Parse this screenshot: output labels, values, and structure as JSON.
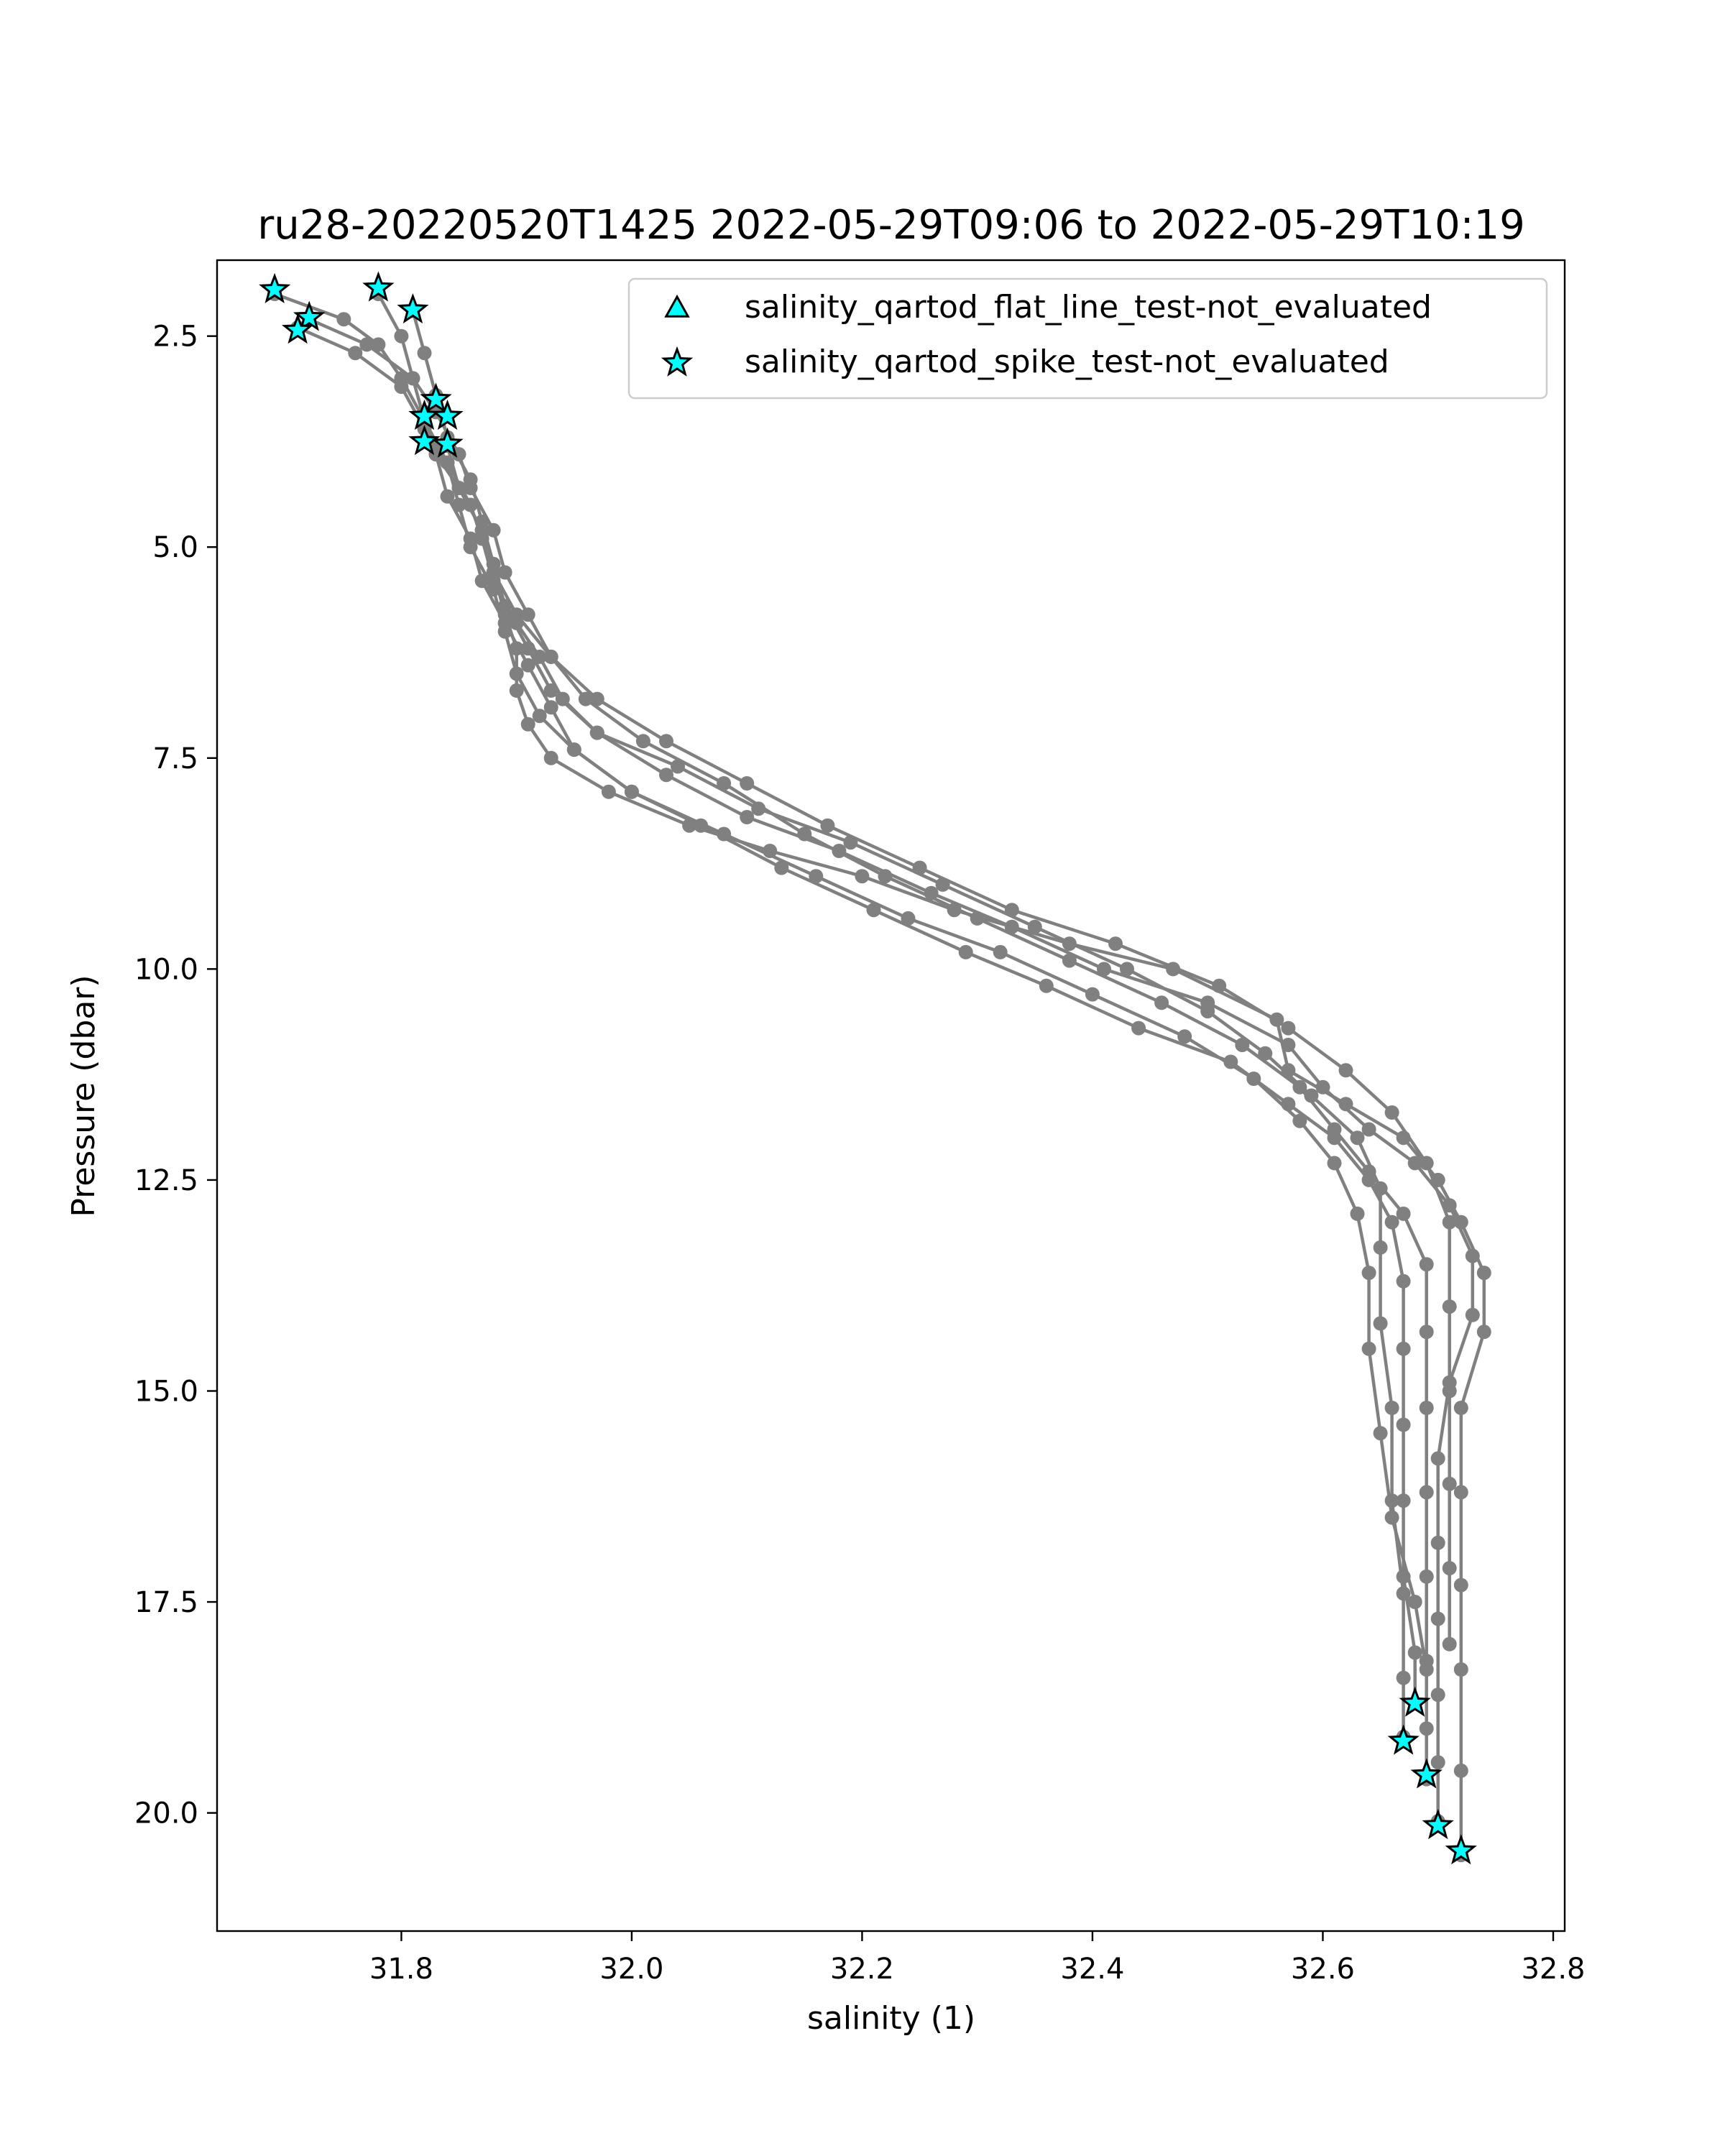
{
  "chart_data": {
    "type": "scatter",
    "title": "ru28-20220520T1425 2022-05-29T09:06 to 2022-05-29T10:19",
    "xlabel": "salinity (1)",
    "ylabel": "Pressure (dbar)",
    "xlim": [
      31.64,
      32.81
    ],
    "ylim": [
      21.4,
      1.6
    ],
    "y_inverted": true,
    "grid": false,
    "legend_position": "top-right",
    "xticks": [
      "31.8",
      "32.0",
      "32.2",
      "32.4",
      "32.6",
      "32.8"
    ],
    "yticks": [
      "2.5",
      "5.0",
      "7.5",
      "10.0",
      "12.5",
      "15.0",
      "17.5",
      "20.0"
    ],
    "profile_color": "#808080",
    "marker_color": "#00ffff",
    "marker_edge": "#000000",
    "legend": [
      {
        "label": "salinity_qartod_flat_line_test-not_evaluated",
        "marker": "triangle"
      },
      {
        "label": "salinity_qartod_spike_test-not_evaluated",
        "marker": "star"
      }
    ],
    "series": [
      {
        "x": [
          31.69,
          31.75,
          31.78,
          31.8,
          31.82,
          31.83,
          31.85,
          31.87,
          31.88,
          31.89,
          31.9,
          31.9,
          31.91,
          31.93,
          31.98,
          32.05,
          32.12,
          32.2,
          32.28,
          32.38,
          32.47,
          32.56,
          32.57,
          32.62,
          32.67,
          32.7,
          32.72,
          32.74,
          32.74,
          32.72,
          32.72,
          32.72,
          32.72,
          32.72,
          32.72
        ],
        "y": [
          2.0,
          2.3,
          2.6,
          3.0,
          3.5,
          3.9,
          4.3,
          4.8,
          5.3,
          5.8,
          6.2,
          6.7,
          7.1,
          7.5,
          7.9,
          8.3,
          8.6,
          8.9,
          9.3,
          9.7,
          10.0,
          10.6,
          11.2,
          11.6,
          12.0,
          12.5,
          13.0,
          13.6,
          14.3,
          15.2,
          16.2,
          17.3,
          18.3,
          19.5,
          20.5
        ]
      },
      {
        "x": [
          31.71,
          31.76,
          31.8,
          31.82,
          31.84,
          31.86,
          31.87,
          31.88,
          31.9,
          31.92,
          31.94,
          31.97,
          32.03,
          32.1,
          32.18,
          32.26,
          32.33,
          32.41,
          32.5,
          32.57,
          32.6,
          32.64,
          32.68,
          32.71,
          32.73,
          32.73,
          32.71,
          32.7,
          32.7,
          32.7,
          32.7,
          32.7,
          32.7
        ],
        "y": [
          2.4,
          2.7,
          3.1,
          3.6,
          4.0,
          4.5,
          4.9,
          5.4,
          5.9,
          6.3,
          6.8,
          7.2,
          7.7,
          8.2,
          8.6,
          9.1,
          9.5,
          10.0,
          10.4,
          10.9,
          11.4,
          11.9,
          12.3,
          12.8,
          13.4,
          14.1,
          14.9,
          15.8,
          16.8,
          17.7,
          18.6,
          19.4,
          20.1
        ]
      },
      {
        "x": [
          31.72,
          31.77,
          31.81,
          31.83,
          31.85,
          31.86,
          31.88,
          31.89,
          31.91,
          31.93,
          31.96,
          32.01,
          32.08,
          32.15,
          32.22,
          32.3,
          32.38,
          32.46,
          32.53,
          32.58,
          32.61,
          32.64,
          32.67,
          32.69,
          32.69,
          32.69,
          32.69,
          32.69,
          32.69,
          32.69,
          32.69
        ],
        "y": [
          2.3,
          2.6,
          3.0,
          3.4,
          3.9,
          4.3,
          4.8,
          5.3,
          5.8,
          6.3,
          6.8,
          7.3,
          7.8,
          8.4,
          8.9,
          9.4,
          9.9,
          10.4,
          10.9,
          11.4,
          11.9,
          12.4,
          12.9,
          13.5,
          14.3,
          15.2,
          16.2,
          17.2,
          18.2,
          19.0,
          19.6
        ]
      },
      {
        "x": [
          31.78,
          31.8,
          31.81,
          31.82,
          31.84,
          31.85,
          31.86,
          31.88,
          31.89,
          31.9,
          31.92,
          31.95,
          32.0,
          32.06,
          32.13,
          32.21,
          32.29,
          32.36,
          32.44,
          32.52,
          32.57,
          32.61,
          32.64,
          32.66,
          32.67,
          32.67,
          32.67,
          32.67,
          32.67,
          32.68,
          32.68
        ],
        "y": [
          2.0,
          2.5,
          3.0,
          3.5,
          4.0,
          4.5,
          5.0,
          5.5,
          6.0,
          6.5,
          7.0,
          7.4,
          7.9,
          8.3,
          8.8,
          9.3,
          9.8,
          10.2,
          10.7,
          11.1,
          11.6,
          12.0,
          12.5,
          13.0,
          13.7,
          14.5,
          15.4,
          16.3,
          17.2,
          18.1,
          18.7
        ]
      },
      {
        "x": [
          31.81,
          31.82,
          31.83,
          31.84,
          31.86,
          31.87,
          31.88,
          31.89,
          31.91,
          31.93,
          31.97,
          32.04,
          32.11,
          32.19,
          32.27,
          32.35,
          32.43,
          32.5,
          32.55,
          32.59,
          32.63,
          32.65,
          32.65,
          32.65,
          32.66,
          32.66,
          32.67,
          32.67,
          32.67
        ],
        "y": [
          2.2,
          2.7,
          3.2,
          3.7,
          4.2,
          4.7,
          5.2,
          5.7,
          6.2,
          6.7,
          7.2,
          7.6,
          8.1,
          8.5,
          9.0,
          9.5,
          10.0,
          10.5,
          11.0,
          11.5,
          12.0,
          12.6,
          13.3,
          14.2,
          15.2,
          16.3,
          17.4,
          18.4,
          19.1
        ]
      },
      {
        "x": [
          31.82,
          31.83,
          31.84,
          31.86,
          31.87,
          31.89,
          31.91,
          31.93,
          31.95,
          32.0,
          32.08,
          32.16,
          32.24,
          32.32,
          32.4,
          32.48,
          32.54,
          32.58,
          32.61,
          32.63,
          32.64,
          32.64,
          32.65,
          32.66,
          32.68,
          32.69
        ],
        "y": [
          3.4,
          3.9,
          4.4,
          4.9,
          5.4,
          5.9,
          6.4,
          6.9,
          7.4,
          7.9,
          8.4,
          8.9,
          9.4,
          9.8,
          10.3,
          10.8,
          11.3,
          11.8,
          12.3,
          12.9,
          13.6,
          14.5,
          15.5,
          16.5,
          17.5,
          18.3
        ]
      },
      {
        "x": [
          31.84,
          31.85,
          31.87,
          31.88,
          31.9,
          31.93,
          31.97,
          32.03,
          32.1,
          32.17,
          32.25,
          32.33,
          32.42,
          32.51,
          32.57,
          32.62,
          32.66,
          32.69,
          32.71,
          32.71,
          32.71,
          32.71,
          32.71,
          32.71
        ],
        "y": [
          3.8,
          4.3,
          4.8,
          5.3,
          5.8,
          6.3,
          6.8,
          7.3,
          7.8,
          8.3,
          8.8,
          9.3,
          9.7,
          10.2,
          10.7,
          11.2,
          11.7,
          12.3,
          13.0,
          14.0,
          15.0,
          16.1,
          17.1,
          18.0
        ]
      }
    ],
    "flat_line_markers": {
      "x": [],
      "y": []
    },
    "spike_markers": {
      "x": [
        31.69,
        31.72,
        31.71,
        31.78,
        31.81,
        31.83,
        31.82,
        31.84,
        31.82,
        31.84,
        32.68,
        32.67,
        32.69,
        32.7,
        32.72
      ],
      "y": [
        1.95,
        2.28,
        2.43,
        1.93,
        2.19,
        3.25,
        3.45,
        3.45,
        3.75,
        3.78,
        18.7,
        19.15,
        19.55,
        20.15,
        20.45
      ]
    }
  }
}
